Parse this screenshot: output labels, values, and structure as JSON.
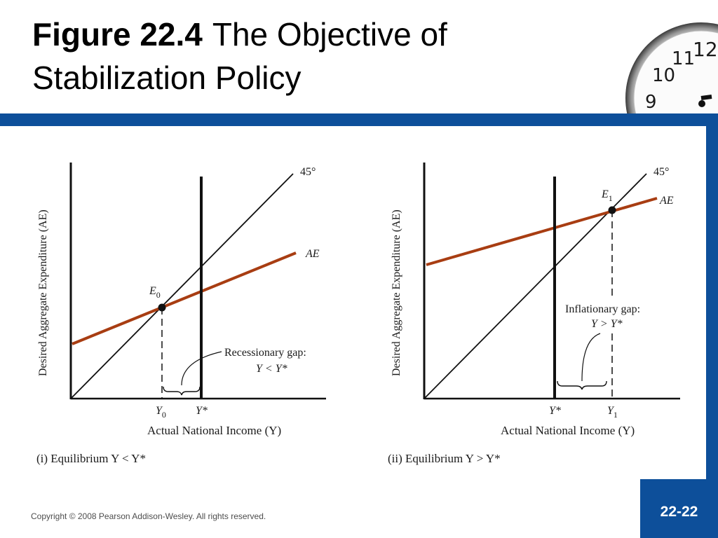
{
  "slide": {
    "title_bold": "Figure 22.4",
    "title_rest": "The Objective of Stabilization Policy",
    "copyright": "Copyright © 2008 Pearson Addison-Wesley. All rights reserved.",
    "page_number": "22-22"
  },
  "colors": {
    "band": "#0d4f9a",
    "ae_line": "#a83d12",
    "axis": "#111111"
  },
  "clock": {
    "numerals": [
      "12",
      "11",
      "10",
      "9"
    ]
  },
  "panel_left": {
    "y_axis_label": "Desired Aggregate Expenditure (AE)",
    "x_axis_label": "Actual National Income (Y)",
    "line_45_label": "45°",
    "ae_label": "AE",
    "equilibrium_label": "E",
    "equilibrium_sub": "0",
    "tick_y0": "Y",
    "tick_y0_sub": "0",
    "tick_ystar": "Y*",
    "gap_label_line1": "Recessionary gap:",
    "gap_label_line2": "Y < Y*",
    "caption": "(i) Equilibrium Y < Y*"
  },
  "panel_right": {
    "y_axis_label": "Desired Aggregate Expenditure (AE)",
    "x_axis_label": "Actual National Income (Y)",
    "line_45_label": "45°",
    "ae_label": "AE",
    "equilibrium_label": "E",
    "equilibrium_sub": "1",
    "tick_ystar": "Y*",
    "tick_y1": "Y",
    "tick_y1_sub": "1",
    "gap_label_line1": "Inflationary gap:",
    "gap_label_line2": "Y > Y*",
    "caption": "(ii) Equilibrium Y > Y*"
  }
}
